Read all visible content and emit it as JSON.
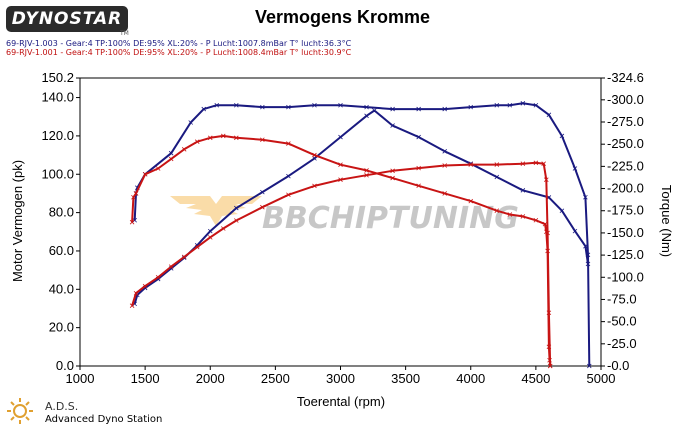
{
  "brand": {
    "logo_text": "DYNOSTAR",
    "logo_sub": "TM",
    "watermark": "BBCHIPTUNING"
  },
  "footer": {
    "ads": "A.D.S.",
    "ads_full": "Advanced Dyno Station"
  },
  "runs": [
    "69-RJV-1.003 - Gear:4 TP:100% DE:95% XL:20%   - P Lucht:1007.8mBar T° lucht:36.3°C",
    "69-RJV-1.001 - Gear:4 TP:100% DE:95% XL:20%   - P Lucht:1008.4mBar T° lucht:30.9°C"
  ],
  "colors": {
    "run1": "#1a1a80",
    "run2": "#c81414"
  },
  "chart_data": {
    "type": "line",
    "title": "Vermogens Kromme",
    "xlabel": "Toerental (rpm)",
    "ylabel": "Motor Vermogen (pk)",
    "y2label": "Torque (Nm)",
    "xlim": [
      1000,
      5000
    ],
    "ylim": [
      0,
      150.2
    ],
    "y2lim": [
      0,
      -324.6
    ],
    "xticks": [
      "1000",
      "1500",
      "2000",
      "2500",
      "3000",
      "3500",
      "4000",
      "4500",
      "5000"
    ],
    "yticks": [
      "0.0",
      "20.0",
      "40.0",
      "60.0",
      "80.0",
      "100.0",
      "120.0",
      "140.0",
      "150.2"
    ],
    "y2ticks": [
      "-0.0",
      "-25.0",
      "-50.0",
      "-75.0",
      "-100.0",
      "-125.0",
      "-150.0",
      "-175.0",
      "-200.0",
      "-225.0",
      "-250.0",
      "-275.0",
      "-300.0",
      "-324.6"
    ],
    "grid": false,
    "series": [
      {
        "axis": "left",
        "color": "#1a1a80",
        "x": [
          1420,
          1430,
          1440,
          1500,
          1700,
          1850,
          1950,
          2050,
          2200,
          2400,
          2600,
          2800,
          3000,
          3200,
          3400,
          3600,
          3800,
          4000,
          4200,
          4300,
          4400,
          4500,
          4600,
          4700,
          4800,
          4880,
          4900,
          4910
        ],
        "y": [
          76,
          90,
          93,
          100,
          111,
          127,
          134,
          136,
          136,
          135,
          135,
          136,
          136,
          135,
          134,
          134,
          134,
          135,
          136,
          136,
          137,
          136,
          131,
          120,
          103,
          88,
          58,
          0
        ]
      },
      {
        "axis": "right",
        "color": "#1a1a80",
        "x": [
          1420,
          1440,
          1500,
          1600,
          1700,
          1800,
          1900,
          2000,
          2200,
          2400,
          2600,
          2800,
          3000,
          3200,
          3260,
          3400,
          3600,
          3800,
          4000,
          4200,
          4400,
          4600,
          4700,
          4800,
          4880,
          4900
        ],
        "y": [
          -70,
          -80,
          -88,
          -98,
          -110,
          -122,
          -136,
          -152,
          -178,
          -196,
          -214,
          -234,
          -258,
          -282,
          -288,
          -271,
          -258,
          -242,
          -228,
          -213,
          -198,
          -190,
          -175,
          -152,
          -135,
          -115
        ]
      },
      {
        "axis": "left",
        "color": "#c81414",
        "x": [
          1400,
          1410,
          1430,
          1500,
          1600,
          1700,
          1800,
          1900,
          2000,
          2100,
          2200,
          2400,
          2600,
          2800,
          3000,
          3200,
          3400,
          3600,
          3800,
          4000,
          4200,
          4300,
          4400,
          4500,
          4570,
          4580,
          4590,
          4600,
          4605,
          4610
        ],
        "y": [
          75,
          88,
          90,
          100,
          103,
          108,
          113,
          117,
          119,
          120,
          119,
          118,
          116,
          110,
          105,
          102,
          98,
          94,
          90,
          86,
          81,
          79,
          78,
          76,
          74,
          70,
          60,
          10,
          3,
          0
        ]
      },
      {
        "axis": "right",
        "color": "#c81414",
        "x": [
          1400,
          1430,
          1500,
          1600,
          1700,
          1800,
          1900,
          2000,
          2100,
          2200,
          2400,
          2600,
          2800,
          3000,
          3200,
          3400,
          3600,
          3800,
          4000,
          4200,
          4400,
          4500,
          4560,
          4580,
          4590,
          4600,
          4610
        ],
        "y": [
          -68,
          -82,
          -90,
          -100,
          -112,
          -123,
          -134,
          -145,
          -155,
          -164,
          -179,
          -193,
          -203,
          -210,
          -215,
          -220,
          -223,
          -226,
          -227,
          -227,
          -228,
          -229,
          -228,
          -210,
          -150,
          -60,
          0
        ]
      }
    ]
  }
}
